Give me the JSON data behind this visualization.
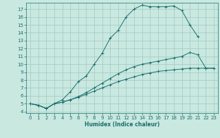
{
  "title": "",
  "xlabel": "Humidex (Indice chaleur)",
  "bg_color": "#c8e8e0",
  "grid_color": "#a0c8c0",
  "line_color": "#1a6e6e",
  "xlim": [
    -0.5,
    23.5
  ],
  "ylim": [
    3.8,
    17.8
  ],
  "xticks": [
    0,
    1,
    2,
    3,
    4,
    5,
    6,
    7,
    8,
    9,
    10,
    11,
    12,
    13,
    14,
    15,
    16,
    17,
    18,
    19,
    20,
    21,
    22,
    23
  ],
  "yticks": [
    4,
    5,
    6,
    7,
    8,
    9,
    10,
    11,
    12,
    13,
    14,
    15,
    16,
    17
  ],
  "curve1_x": [
    0,
    1,
    2,
    3,
    4,
    5,
    6,
    7,
    8,
    9,
    10,
    11,
    12,
    13,
    14,
    15,
    16,
    17,
    18,
    19,
    20,
    21
  ],
  "curve1_y": [
    5.0,
    4.8,
    4.4,
    5.0,
    5.5,
    6.5,
    7.8,
    8.5,
    10.0,
    11.4,
    13.3,
    14.3,
    16.0,
    17.0,
    17.5,
    17.3,
    17.3,
    17.3,
    17.4,
    16.8,
    15.0,
    13.5
  ],
  "curve2_x": [
    0,
    1,
    2,
    3,
    4,
    5,
    6,
    7,
    8,
    9,
    10,
    11,
    12,
    13,
    14,
    15,
    16,
    17,
    18,
    19,
    20,
    21,
    22,
    23
  ],
  "curve2_y": [
    5.0,
    4.8,
    4.4,
    5.0,
    5.2,
    5.5,
    5.8,
    6.2,
    6.6,
    7.0,
    7.4,
    7.8,
    8.1,
    8.4,
    8.7,
    8.9,
    9.1,
    9.2,
    9.3,
    9.4,
    9.5,
    9.5,
    9.5,
    9.5
  ],
  "curve3_x": [
    0,
    1,
    2,
    3,
    4,
    5,
    6,
    7,
    8,
    9,
    10,
    11,
    12,
    13,
    14,
    15,
    16,
    17,
    18,
    19,
    20,
    21,
    22,
    23
  ],
  "curve3_y": [
    5.0,
    4.8,
    4.4,
    5.0,
    5.2,
    5.5,
    5.9,
    6.4,
    7.0,
    7.6,
    8.2,
    8.8,
    9.3,
    9.7,
    10.0,
    10.2,
    10.4,
    10.6,
    10.8,
    11.0,
    11.5,
    11.2,
    9.5,
    9.5
  ]
}
